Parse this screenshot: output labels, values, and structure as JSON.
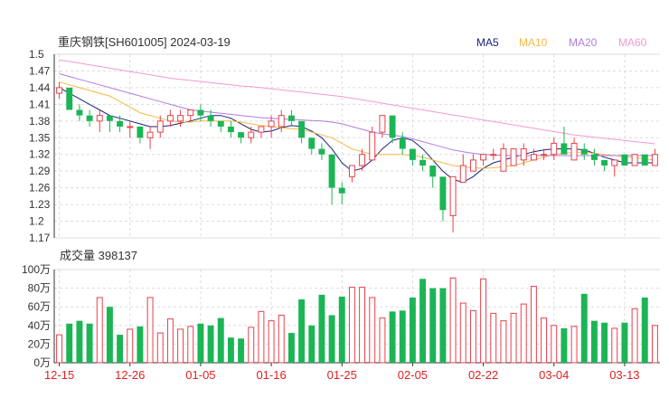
{
  "title": "重庆钢铁[SH601005] 2024-03-19",
  "legend": [
    {
      "label": "MA5",
      "color": "#1a237e"
    },
    {
      "label": "MA10",
      "color": "#f5b942"
    },
    {
      "label": "MA20",
      "color": "#b07ce0"
    },
    {
      "label": "MA60",
      "color": "#f19ad2"
    }
  ],
  "colors": {
    "up": "#e8404c",
    "down": "#1cb556",
    "grid": "#dcdcdc",
    "axis": "#333333",
    "date": "#e02020"
  },
  "chart_data": [
    {
      "type": "candlestick",
      "price_ticks": [
        "1.5",
        "1.47",
        "1.44",
        "1.41",
        "1.38",
        "1.35",
        "1.32",
        "1.29",
        "1.26",
        "1.23",
        "1.2",
        "1.17"
      ],
      "ylim": [
        1.17,
        1.5
      ],
      "date_ticks": [
        {
          "label": "12-15",
          "index": 0
        },
        {
          "label": "12-26",
          "index": 7
        },
        {
          "label": "01-05",
          "index": 14
        },
        {
          "label": "01-16",
          "index": 21
        },
        {
          "label": "01-25",
          "index": 28
        },
        {
          "label": "02-05",
          "index": 35
        },
        {
          "label": "02-22",
          "index": 42
        },
        {
          "label": "03-04",
          "index": 49
        },
        {
          "label": "03-13",
          "index": 56
        }
      ],
      "ohlc": [
        [
          1.43,
          1.45,
          1.42,
          1.44
        ],
        [
          1.44,
          1.44,
          1.4,
          1.4
        ],
        [
          1.4,
          1.41,
          1.38,
          1.39
        ],
        [
          1.39,
          1.4,
          1.37,
          1.38
        ],
        [
          1.38,
          1.4,
          1.36,
          1.39
        ],
        [
          1.39,
          1.39,
          1.36,
          1.38
        ],
        [
          1.38,
          1.39,
          1.36,
          1.37
        ],
        [
          1.37,
          1.38,
          1.35,
          1.37
        ],
        [
          1.37,
          1.37,
          1.34,
          1.35
        ],
        [
          1.35,
          1.37,
          1.33,
          1.36
        ],
        [
          1.36,
          1.39,
          1.35,
          1.38
        ],
        [
          1.38,
          1.4,
          1.37,
          1.39
        ],
        [
          1.38,
          1.4,
          1.37,
          1.39
        ],
        [
          1.39,
          1.4,
          1.38,
          1.4
        ],
        [
          1.4,
          1.41,
          1.38,
          1.39
        ],
        [
          1.39,
          1.4,
          1.37,
          1.38
        ],
        [
          1.38,
          1.38,
          1.36,
          1.37
        ],
        [
          1.37,
          1.38,
          1.35,
          1.36
        ],
        [
          1.36,
          1.36,
          1.34,
          1.35
        ],
        [
          1.35,
          1.37,
          1.34,
          1.36
        ],
        [
          1.36,
          1.37,
          1.35,
          1.37
        ],
        [
          1.37,
          1.39,
          1.35,
          1.38
        ],
        [
          1.37,
          1.4,
          1.36,
          1.39
        ],
        [
          1.39,
          1.4,
          1.37,
          1.38
        ],
        [
          1.38,
          1.38,
          1.34,
          1.35
        ],
        [
          1.35,
          1.35,
          1.32,
          1.33
        ],
        [
          1.33,
          1.34,
          1.31,
          1.32
        ],
        [
          1.32,
          1.32,
          1.23,
          1.26
        ],
        [
          1.26,
          1.27,
          1.23,
          1.25
        ],
        [
          1.28,
          1.3,
          1.27,
          1.3
        ],
        [
          1.3,
          1.33,
          1.29,
          1.32
        ],
        [
          1.31,
          1.37,
          1.31,
          1.36
        ],
        [
          1.36,
          1.39,
          1.35,
          1.39
        ],
        [
          1.39,
          1.39,
          1.34,
          1.35
        ],
        [
          1.35,
          1.36,
          1.32,
          1.33
        ],
        [
          1.33,
          1.33,
          1.3,
          1.31
        ],
        [
          1.31,
          1.32,
          1.29,
          1.3
        ],
        [
          1.3,
          1.3,
          1.26,
          1.28
        ],
        [
          1.28,
          1.28,
          1.2,
          1.22
        ],
        [
          1.21,
          1.28,
          1.18,
          1.28
        ],
        [
          1.27,
          1.32,
          1.27,
          1.3
        ],
        [
          1.29,
          1.32,
          1.29,
          1.31
        ],
        [
          1.31,
          1.32,
          1.3,
          1.32
        ],
        [
          1.32,
          1.33,
          1.31,
          1.32
        ],
        [
          1.29,
          1.34,
          1.29,
          1.33
        ],
        [
          1.3,
          1.33,
          1.3,
          1.33
        ],
        [
          1.31,
          1.34,
          1.3,
          1.33
        ],
        [
          1.31,
          1.33,
          1.31,
          1.32
        ],
        [
          1.32,
          1.33,
          1.31,
          1.32
        ],
        [
          1.32,
          1.35,
          1.31,
          1.34
        ],
        [
          1.34,
          1.37,
          1.32,
          1.32
        ],
        [
          1.31,
          1.35,
          1.31,
          1.34
        ],
        [
          1.33,
          1.34,
          1.31,
          1.32
        ],
        [
          1.32,
          1.33,
          1.3,
          1.31
        ],
        [
          1.31,
          1.31,
          1.29,
          1.3
        ],
        [
          1.3,
          1.31,
          1.28,
          1.31
        ],
        [
          1.32,
          1.32,
          1.3,
          1.3
        ],
        [
          1.3,
          1.32,
          1.3,
          1.32
        ],
        [
          1.32,
          1.32,
          1.3,
          1.3
        ],
        [
          1.3,
          1.33,
          1.3,
          1.32
        ]
      ],
      "ma5": [
        1.44,
        1.43,
        1.42,
        1.41,
        1.4,
        1.39,
        1.385,
        1.38,
        1.375,
        1.37,
        1.37,
        1.372,
        1.376,
        1.38,
        1.385,
        1.39,
        1.39,
        1.385,
        1.375,
        1.365,
        1.36,
        1.362,
        1.368,
        1.372,
        1.37,
        1.362,
        1.35,
        1.33,
        1.305,
        1.29,
        1.295,
        1.31,
        1.33,
        1.345,
        1.35,
        1.345,
        1.33,
        1.31,
        1.29,
        1.275,
        1.27,
        1.28,
        1.295,
        1.305,
        1.31,
        1.315,
        1.32,
        1.325,
        1.328,
        1.33,
        1.33,
        1.33,
        1.328,
        1.322,
        1.315,
        1.31,
        1.305,
        1.305,
        1.305,
        1.305
      ],
      "ma10": [
        1.45,
        1.445,
        1.44,
        1.435,
        1.43,
        1.425,
        1.415,
        1.405,
        1.395,
        1.39,
        1.385,
        1.38,
        1.378,
        1.378,
        1.38,
        1.38,
        1.38,
        1.38,
        1.378,
        1.375,
        1.372,
        1.37,
        1.368,
        1.366,
        1.365,
        1.36,
        1.355,
        1.35,
        1.34,
        1.33,
        1.325,
        1.32,
        1.32,
        1.32,
        1.32,
        1.318,
        1.315,
        1.31,
        1.305,
        1.3,
        1.298,
        1.296,
        1.295,
        1.296,
        1.298,
        1.3,
        1.305,
        1.31,
        1.315,
        1.32,
        1.322,
        1.324,
        1.324,
        1.322,
        1.32,
        1.318,
        1.316,
        1.314,
        1.312,
        1.31
      ],
      "ma20": [
        1.465,
        1.46,
        1.455,
        1.45,
        1.445,
        1.44,
        1.435,
        1.43,
        1.425,
        1.42,
        1.415,
        1.41,
        1.405,
        1.4,
        1.398,
        1.396,
        1.394,
        1.392,
        1.39,
        1.388,
        1.386,
        1.385,
        1.384,
        1.383,
        1.382,
        1.381,
        1.38,
        1.378,
        1.375,
        1.37,
        1.365,
        1.36,
        1.357,
        1.355,
        1.352,
        1.348,
        1.343,
        1.338,
        1.333,
        1.328,
        1.325,
        1.322,
        1.32,
        1.319,
        1.318,
        1.318,
        1.318,
        1.318,
        1.318,
        1.318,
        1.318,
        1.318,
        1.318,
        1.318,
        1.318,
        1.318,
        1.318,
        1.318,
        1.318,
        1.318
      ],
      "ma60": [
        1.49,
        1.487,
        1.484,
        1.481,
        1.478,
        1.475,
        1.472,
        1.469,
        1.466,
        1.463,
        1.46,
        1.457,
        1.455,
        1.453,
        1.451,
        1.449,
        1.447,
        1.445,
        1.443,
        1.442,
        1.44,
        1.438,
        1.436,
        1.434,
        1.432,
        1.43,
        1.428,
        1.426,
        1.424,
        1.421,
        1.418,
        1.415,
        1.412,
        1.409,
        1.406,
        1.403,
        1.4,
        1.397,
        1.394,
        1.391,
        1.388,
        1.385,
        1.382,
        1.379,
        1.376,
        1.373,
        1.37,
        1.367,
        1.364,
        1.361,
        1.358,
        1.355,
        1.353,
        1.351,
        1.349,
        1.347,
        1.345,
        1.343,
        1.341,
        1.339
      ]
    },
    {
      "type": "bar",
      "label": "成交量",
      "value_label": "398137",
      "ticks": [
        "100万",
        "80万",
        "60万",
        "40万",
        "20万",
        "0万"
      ],
      "ylim": [
        0,
        100
      ],
      "values": [
        30,
        42,
        45,
        42,
        70,
        60,
        30,
        36,
        39,
        70,
        32,
        47,
        36,
        39,
        42,
        40,
        48,
        27,
        26,
        38,
        55,
        45,
        51,
        32,
        68,
        40,
        73,
        51,
        71,
        81,
        81,
        70,
        48,
        55,
        56,
        70,
        90,
        80,
        80,
        91,
        64,
        56,
        90,
        53,
        45,
        53,
        63,
        82,
        48,
        40,
        37,
        39,
        74,
        45,
        43,
        37,
        43,
        58,
        70,
        40
      ]
    }
  ]
}
